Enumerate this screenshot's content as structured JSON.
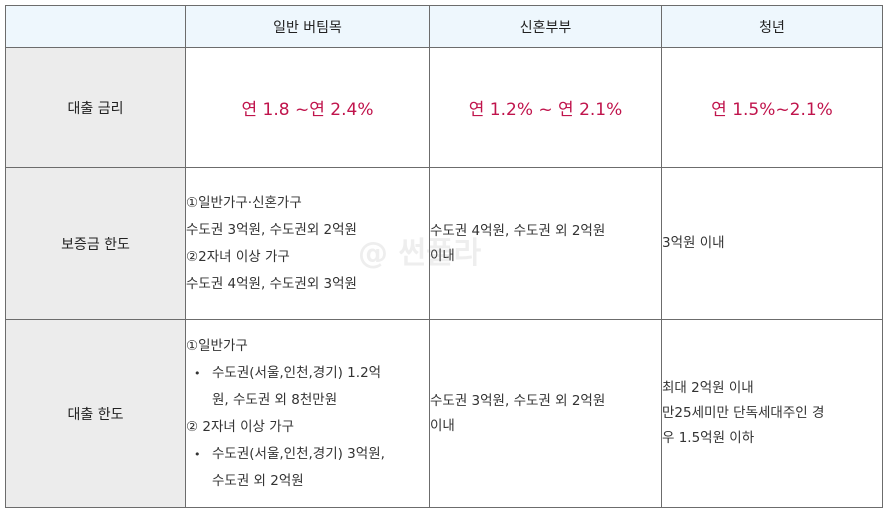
{
  "table": {
    "headers": [
      "",
      "일반 버팀목",
      "신혼부부",
      "청년"
    ],
    "rows": {
      "rate": {
        "label": "대출 금리",
        "values": [
          "연 1.8 ~연 2.4%",
          "연 1.2% ~ 연 2.1%",
          "연 1.5%~2.1%"
        ]
      },
      "deposit": {
        "label": "보증금 한도",
        "general": [
          "①일반가구·신혼가구",
          "수도권 3억원, 수도권외 2억원",
          "②2자녀 이상 가구",
          "수도권 4억원, 수도권외 3억원"
        ],
        "newlywed": [
          "수도권 4억원, 수도권 외 2억원",
          "이내"
        ],
        "youth": [
          "3억원 이내"
        ]
      },
      "limit": {
        "label": "대출 한도",
        "general_head1": "①일반가구",
        "general_item1": [
          "수도권(서울,인천,경기) 1.2억",
          "원, 수도권 외 8천만원"
        ],
        "general_head2": "② 2자녀 이상 가구",
        "general_item2": [
          "수도권(서울,인천,경기) 3억원,",
          "수도권 외 2억원"
        ],
        "newlywed": [
          "수도권 3억원, 수도권 외 2억원",
          "이내"
        ],
        "youth": [
          "최대 2억원 이내",
          "만25세미만 단독세대주인 경",
          "우 1.5억원 이하"
        ]
      }
    },
    "bullet": "•"
  },
  "watermark": "@ 썬플라",
  "colors": {
    "header_bg": "#eef7fd",
    "label_bg": "#ececec",
    "rate_text": "#c0144c",
    "border": "#6c6c6c"
  }
}
